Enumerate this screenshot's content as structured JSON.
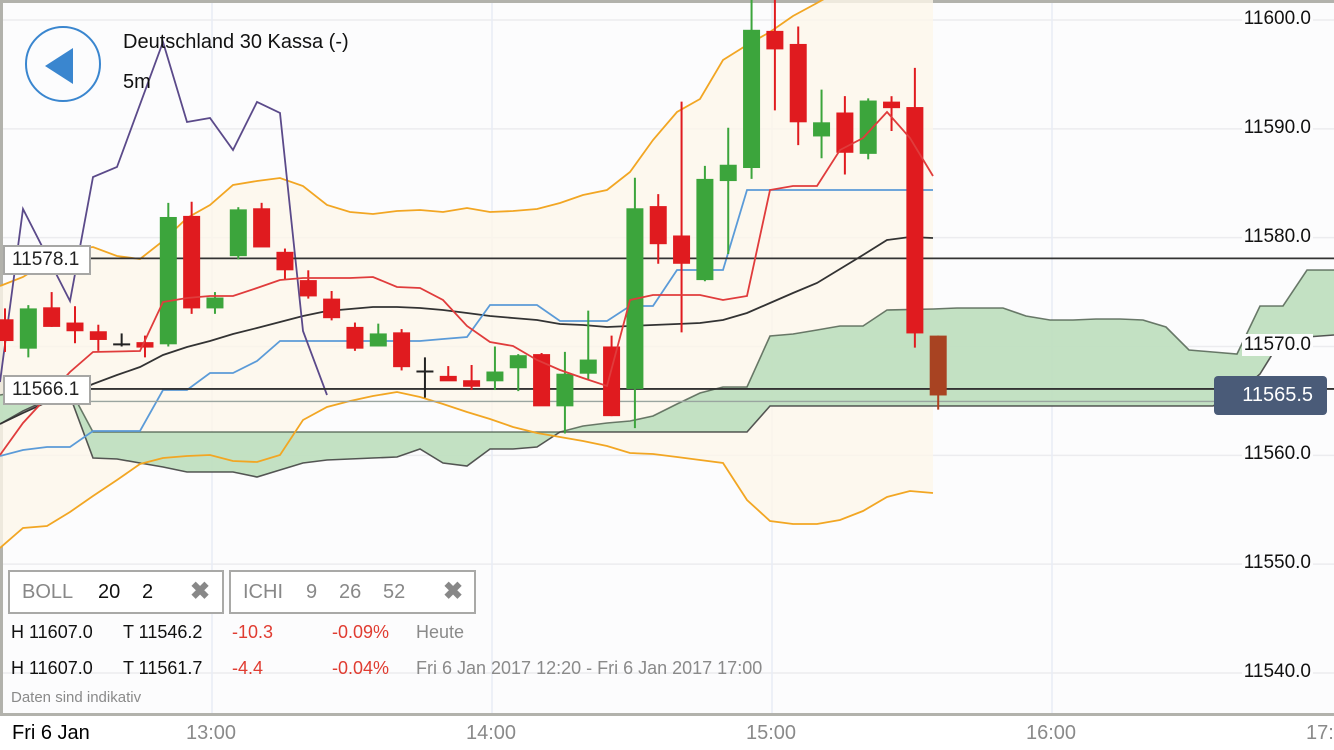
{
  "header": {
    "instrument": "Deutschland 30 Kassa (-)",
    "interval": "5m",
    "back_icon": "back-arrow-icon"
  },
  "y_axis": {
    "labels": [
      "11600.0",
      "11590.0",
      "11580.0",
      "11570.0",
      "11560.0",
      "11550.0",
      "11540.0"
    ]
  },
  "x_axis": {
    "date": "Fri 6 Jan",
    "labels": [
      "13:00",
      "14:00",
      "15:00",
      "16:00",
      "17:"
    ]
  },
  "horizontal_lines": [
    {
      "label": "11578.1"
    },
    {
      "label": "11566.1"
    }
  ],
  "current_price": "11565.5",
  "indicators": [
    {
      "name": "BOLL",
      "params": [
        "20",
        "2"
      ],
      "remove_icon": "close-icon"
    },
    {
      "name": "ICHI",
      "params": [
        "9",
        "26",
        "52"
      ],
      "remove_icon": "close-icon"
    }
  ],
  "stats": [
    {
      "high": "H 11607.0",
      "low": "T 11546.2",
      "change": "-10.3",
      "pct": "-0.09%",
      "period": "Heute"
    },
    {
      "high": "H 11607.0",
      "low": "T 11561.7",
      "change": "-4.4",
      "pct": "-0.04%",
      "period": "Fri 6 Jan 2017 12:20 - Fri 6 Jan 2017 17:00"
    }
  ],
  "disclaimer": "Daten sind indikativ",
  "colors": {
    "up": "#3ca53c",
    "down": "#e01b1f",
    "boll": "#f2a623",
    "tenkan": "#e03c3c",
    "kijun": "#5b9bd8",
    "chikou": "#5b4a8a",
    "cloud_bull": "#c0dfc0",
    "cloud_bear": "#f5b0b0",
    "badge": "#4a5b78"
  },
  "chart_data": {
    "type": "candlestick",
    "title": "Deutschland 30 Kassa (-) 5m",
    "ylim": [
      11536,
      11602
    ],
    "x": [
      "12:20",
      "12:25",
      "12:30",
      "12:35",
      "12:40",
      "12:45",
      "12:50",
      "12:55",
      "13:00",
      "13:05",
      "13:10",
      "13:15",
      "13:20",
      "13:25",
      "13:30",
      "13:35",
      "13:40",
      "13:45",
      "13:50",
      "13:55",
      "14:00",
      "14:05",
      "14:10",
      "14:15",
      "14:20",
      "14:25",
      "14:30",
      "14:35",
      "14:40",
      "14:45",
      "14:50",
      "14:55",
      "15:00",
      "15:05",
      "15:10",
      "15:15",
      "15:20",
      "15:25",
      "15:30",
      "15:35"
    ],
    "ohlc": [
      [
        11572.5,
        11573.5,
        11569.5,
        11570.5
      ],
      [
        11569.8,
        11573.8,
        11569.0,
        11573.5
      ],
      [
        11573.6,
        11575.0,
        11571.8,
        11571.8
      ],
      [
        11572.2,
        11573.7,
        11570.3,
        11571.4
      ],
      [
        11571.4,
        11572.0,
        11569.6,
        11570.6
      ],
      [
        11570.2,
        11571.2,
        11570.0,
        11570.2
      ],
      [
        11570.4,
        11571.0,
        11569.0,
        11569.9
      ],
      [
        11570.2,
        11583.2,
        11570.0,
        11581.9
      ],
      [
        11582.0,
        11583.3,
        11573.0,
        11573.5
      ],
      [
        11573.5,
        11575.0,
        11573.0,
        11574.5
      ],
      [
        11578.3,
        11582.8,
        11578.0,
        11582.6
      ],
      [
        11582.7,
        11583.2,
        11579.2,
        11579.1
      ],
      [
        11578.7,
        11579.0,
        11576.2,
        11577.0
      ],
      [
        11576.1,
        11577.0,
        11574.4,
        11574.6
      ],
      [
        11574.4,
        11575.1,
        11572.4,
        11572.6
      ],
      [
        11571.8,
        11572.2,
        11569.6,
        11569.8
      ],
      [
        11570.0,
        11572.1,
        11570.0,
        11571.2
      ],
      [
        11571.3,
        11571.6,
        11567.8,
        11568.1
      ],
      [
        11567.7,
        11569.0,
        11565.3,
        11567.6
      ],
      [
        11567.3,
        11568.2,
        11567.0,
        11566.8
      ],
      [
        11566.9,
        11568.3,
        11566.0,
        11566.3
      ],
      [
        11566.8,
        11570.0,
        11566.0,
        11567.7
      ],
      [
        11568.0,
        11569.3,
        11565.9,
        11569.2
      ],
      [
        11569.3,
        11569.4,
        11564.6,
        11564.5
      ],
      [
        11564.5,
        11569.5,
        11562.0,
        11567.5
      ],
      [
        11567.5,
        11573.3,
        11567.0,
        11568.8
      ],
      [
        11570.0,
        11571.0,
        11563.6,
        11563.6
      ],
      [
        11566.1,
        11585.5,
        11562.5,
        11582.7
      ],
      [
        11582.9,
        11584.0,
        11577.6,
        11579.4
      ],
      [
        11580.2,
        11592.5,
        11571.3,
        11577.6
      ],
      [
        11576.1,
        11586.6,
        11576.0,
        11585.4
      ],
      [
        11585.2,
        11590.1,
        11578.5,
        11586.7
      ],
      [
        11586.4,
        11607.0,
        11585.4,
        11599.1
      ],
      [
        11599.0,
        11603.0,
        11591.7,
        11597.3
      ],
      [
        11597.8,
        11599.4,
        11588.5,
        11590.6
      ],
      [
        11589.3,
        11593.6,
        11587.3,
        11590.6
      ],
      [
        11591.5,
        11593.0,
        11585.8,
        11587.8
      ],
      [
        11587.7,
        11592.8,
        11587.2,
        11592.6
      ],
      [
        11592.5,
        11593.0,
        11589.8,
        11591.9
      ],
      [
        11592.0,
        11595.6,
        11569.9,
        11571.2
      ]
    ],
    "last_candle": [
      11571.0,
      11571.0,
      11564.2,
      11565.5
    ],
    "horizontal_levels": [
      11578.1,
      11566.1
    ],
    "indicators": [
      "BOLL(20,2)",
      "ICHI(9,26,52)"
    ]
  }
}
